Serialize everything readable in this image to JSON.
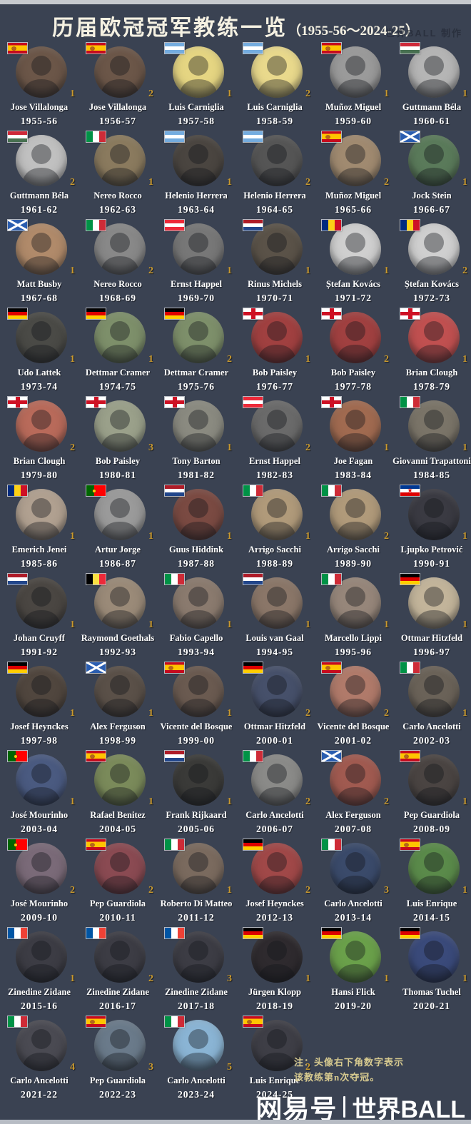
{
  "colors": {
    "background": "#3a4252",
    "count_gold": "#c9992e",
    "note_tan": "#d6c98f",
    "title_cream": "#f5f1e2",
    "text_white": "#ffffff"
  },
  "header": {
    "title_main": "历届欧冠冠军教练一览",
    "title_range": "（1955-56～2024-25）",
    "credit": "世界BALL  制作"
  },
  "note": {
    "line1": "注：头像右下角数字表示",
    "line2": "该教练第n次夺冠。"
  },
  "footer_logo": {
    "brand": "网易号",
    "divider": "|",
    "name": "世界BALL"
  },
  "flags": {
    "spain": {
      "dir": "h",
      "stripes": [
        [
          "#c60b1e",
          25
        ],
        [
          "#ffc400",
          50
        ],
        [
          "#c60b1e",
          25
        ]
      ],
      "overlay": "badge-left"
    },
    "argentina": {
      "dir": "h",
      "stripes": [
        [
          "#74acdf",
          33.3
        ],
        [
          "#ffffff",
          33.4
        ],
        [
          "#74acdf",
          33.3
        ]
      ]
    },
    "hungary": {
      "dir": "h",
      "stripes": [
        [
          "#ce2939",
          33.3
        ],
        [
          "#ffffff",
          33.4
        ],
        [
          "#477050",
          33.3
        ]
      ]
    },
    "italy": {
      "dir": "v",
      "stripes": [
        [
          "#009246",
          33.3
        ],
        [
          "#ffffff",
          33.4
        ],
        [
          "#ce2b37",
          33.3
        ]
      ]
    },
    "scotland": {
      "dir": "h",
      "stripes": [
        [
          "#2a5db0",
          100
        ]
      ],
      "overlay": "saltire"
    },
    "austria": {
      "dir": "h",
      "stripes": [
        [
          "#ed2939",
          33.3
        ],
        [
          "#ffffff",
          33.4
        ],
        [
          "#ed2939",
          33.3
        ]
      ]
    },
    "netherlands": {
      "dir": "h",
      "stripes": [
        [
          "#ae1c28",
          33.3
        ],
        [
          "#ffffff",
          33.4
        ],
        [
          "#21468b",
          33.3
        ]
      ]
    },
    "romania": {
      "dir": "v",
      "stripes": [
        [
          "#002b7f",
          33.3
        ],
        [
          "#fcd116",
          33.4
        ],
        [
          "#ce1126",
          33.3
        ]
      ]
    },
    "germany": {
      "dir": "h",
      "stripes": [
        [
          "#000000",
          33.3
        ],
        [
          "#dd0000",
          33.4
        ],
        [
          "#ffce00",
          33.3
        ]
      ]
    },
    "england": {
      "dir": "h",
      "stripes": [
        [
          "#ffffff",
          100
        ]
      ],
      "overlay": "england-cross"
    },
    "portugal": {
      "dir": "v",
      "stripes": [
        [
          "#006600",
          40
        ],
        [
          "#ff0000",
          60
        ]
      ],
      "overlay": "badge-40"
    },
    "yugoslavia": {
      "dir": "h",
      "stripes": [
        [
          "#003893",
          33.3
        ],
        [
          "#ffffff",
          33.4
        ],
        [
          "#de0000",
          33.3
        ]
      ],
      "overlay": "star"
    },
    "belgium": {
      "dir": "v",
      "stripes": [
        [
          "#000000",
          33.3
        ],
        [
          "#fae042",
          33.4
        ],
        [
          "#ed2939",
          33.3
        ]
      ]
    },
    "france": {
      "dir": "v",
      "stripes": [
        [
          "#0055a4",
          33.3
        ],
        [
          "#ffffff",
          33.4
        ],
        [
          "#ef4135",
          33.3
        ]
      ]
    }
  },
  "coaches": [
    {
      "name": "Jose Villalonga",
      "season": "1955-56",
      "flag": "spain",
      "count": "1",
      "photo": "#6b5648"
    },
    {
      "name": "Jose Villalonga",
      "season": "1956-57",
      "flag": "spain",
      "count": "2",
      "photo": "#6b5648"
    },
    {
      "name": "Luis Carniglia",
      "season": "1957-58",
      "flag": "argentina",
      "count": "1",
      "photo": "#e5d582"
    },
    {
      "name": "Luis Carniglia",
      "season": "1958-59",
      "flag": "argentina",
      "count": "2",
      "photo": "#e9d98c"
    },
    {
      "name": "Muñoz Miguel",
      "season": "1959-60",
      "flag": "spain",
      "count": "1",
      "photo": "#9a9a9a"
    },
    {
      "name": "Guttmann Béla",
      "season": "1960-61",
      "flag": "hungary",
      "count": "1",
      "photo": "#b5b5b5"
    },
    {
      "name": "Guttmann Béla",
      "season": "1961-62",
      "flag": "hungary",
      "count": "2",
      "photo": "#c0c0c0"
    },
    {
      "name": "Nereo Rocco",
      "season": "1962-63",
      "flag": "italy",
      "count": "1",
      "photo": "#8a7a5e"
    },
    {
      "name": "Helenio Herrera",
      "season": "1963-64",
      "flag": "argentina",
      "count": "1",
      "photo": "#4a4540"
    },
    {
      "name": "Helenio Herrera",
      "season": "1964-65",
      "flag": "argentina",
      "count": "2",
      "photo": "#555555"
    },
    {
      "name": "Muñoz Miguel",
      "season": "1965-66",
      "flag": "spain",
      "count": "2",
      "photo": "#a08a70"
    },
    {
      "name": "Jock Stein",
      "season": "1966-67",
      "flag": "scotland",
      "count": "1",
      "photo": "#5a7a5a"
    },
    {
      "name": "Matt Busby",
      "season": "1967-68",
      "flag": "scotland",
      "count": "1",
      "photo": "#b08a6a"
    },
    {
      "name": "Nereo Rocco",
      "season": "1968-69",
      "flag": "italy",
      "count": "2",
      "photo": "#888888"
    },
    {
      "name": "Ernst Happel",
      "season": "1969-70",
      "flag": "austria",
      "count": "1",
      "photo": "#777777"
    },
    {
      "name": "Rinus Michels",
      "season": "1970-71",
      "flag": "netherlands",
      "count": "1",
      "photo": "#5a5248"
    },
    {
      "name": "Ștefan Kovács",
      "season": "1971-72",
      "flag": "romania",
      "count": "1",
      "photo": "#cfcfcf"
    },
    {
      "name": "Ștefan Kovács",
      "season": "1972-73",
      "flag": "romania",
      "count": "2",
      "photo": "#cfcfcf"
    },
    {
      "name": "Udo Lattek",
      "season": "1973-74",
      "flag": "germany",
      "count": "1",
      "photo": "#4a4a46"
    },
    {
      "name": "Dettmar Cramer",
      "season": "1974-75",
      "flag": "germany",
      "count": "1",
      "photo": "#7d8f6a"
    },
    {
      "name": "Dettmar Cramer",
      "season": "1975-76",
      "flag": "germany",
      "count": "2",
      "photo": "#7d8f6a"
    },
    {
      "name": "Bob Paisley",
      "season": "1976-77",
      "flag": "england",
      "count": "1",
      "photo": "#a04040"
    },
    {
      "name": "Bob Paisley",
      "season": "1977-78",
      "flag": "england",
      "count": "2",
      "photo": "#a04040"
    },
    {
      "name": "Brian Clough",
      "season": "1978-79",
      "flag": "england",
      "count": "1",
      "photo": "#c05050"
    },
    {
      "name": "Brian Clough",
      "season": "1979-80",
      "flag": "england",
      "count": "2",
      "photo": "#b86a5a"
    },
    {
      "name": "Bob Paisley",
      "season": "1980-81",
      "flag": "england",
      "count": "3",
      "photo": "#9aa08a"
    },
    {
      "name": "Tony Barton",
      "season": "1981-82",
      "flag": "england",
      "count": "1",
      "photo": "#8a8a80"
    },
    {
      "name": "Ernst Happel",
      "season": "1982-83",
      "flag": "austria",
      "count": "2",
      "photo": "#6a6a6a"
    },
    {
      "name": "Joe Fagan",
      "season": "1983-84",
      "flag": "england",
      "count": "1",
      "photo": "#a06a50"
    },
    {
      "name": "Giovanni Trapattoni",
      "season": "1984-85",
      "flag": "italy",
      "count": "1",
      "photo": "#7a7468"
    },
    {
      "name": "Emerich Jenei",
      "season": "1985-86",
      "flag": "romania",
      "count": "1",
      "photo": "#b0a090"
    },
    {
      "name": "Artur Jorge",
      "season": "1986-87",
      "flag": "portugal",
      "count": "1",
      "photo": "#9a9a9a"
    },
    {
      "name": "Guus Hiddink",
      "season": "1987-88",
      "flag": "netherlands",
      "count": "1",
      "photo": "#7a4a42"
    },
    {
      "name": "Arrigo Sacchi",
      "season": "1988-89",
      "flag": "italy",
      "count": "1",
      "photo": "#b09a7a"
    },
    {
      "name": "Arrigo Sacchi",
      "season": "1989-90",
      "flag": "italy",
      "count": "2",
      "photo": "#b09a7a"
    },
    {
      "name": "Ljupko Petrović",
      "season": "1990-91",
      "flag": "yugoslavia",
      "count": "1",
      "photo": "#3a3a42"
    },
    {
      "name": "Johan Cruyff",
      "season": "1991-92",
      "flag": "netherlands",
      "count": "1",
      "photo": "#4a4642"
    },
    {
      "name": "Raymond Goethals",
      "season": "1992-93",
      "flag": "belgium",
      "count": "1",
      "photo": "#9a8a78"
    },
    {
      "name": "Fabio Capello",
      "season": "1993-94",
      "flag": "italy",
      "count": "1",
      "photo": "#8a7a6e"
    },
    {
      "name": "Louis van Gaal",
      "season": "1994-95",
      "flag": "netherlands",
      "count": "1",
      "photo": "#8a7668"
    },
    {
      "name": "Marcello Lippi",
      "season": "1995-96",
      "flag": "italy",
      "count": "1",
      "photo": "#96867a"
    },
    {
      "name": "Ottmar Hitzfeld",
      "season": "1996-97",
      "flag": "germany",
      "count": "1",
      "photo": "#c2b49a"
    },
    {
      "name": "Josef Heynckes",
      "season": "1997-98",
      "flag": "germany",
      "count": "1",
      "photo": "#50463e"
    },
    {
      "name": "Alex Ferguson",
      "season": "1998-99",
      "flag": "scotland",
      "count": "1",
      "photo": "#5a5048"
    },
    {
      "name": "Vicente del Bosque",
      "season": "1999-00",
      "flag": "spain",
      "count": "1",
      "photo": "#6a5a50"
    },
    {
      "name": "Ottmar Hitzfeld",
      "season": "2000-01",
      "flag": "germany",
      "count": "2",
      "photo": "#46506a"
    },
    {
      "name": "Vicente del Bosque",
      "season": "2001-02",
      "flag": "spain",
      "count": "2",
      "photo": "#b07a6a"
    },
    {
      "name": "Carlo Ancelotti",
      "season": "2002-03",
      "flag": "italy",
      "count": "1",
      "photo": "#6a6258"
    },
    {
      "name": "José Mourinho",
      "season": "2003-04",
      "flag": "portugal",
      "count": "1",
      "photo": "#4a5a80"
    },
    {
      "name": "Rafael Benitez",
      "season": "2004-05",
      "flag": "spain",
      "count": "1",
      "photo": "#7a8a5a"
    },
    {
      "name": "Frank Rijkaard",
      "season": "2005-06",
      "flag": "netherlands",
      "count": "1",
      "photo": "#3a3a38"
    },
    {
      "name": "Carlo Ancelotti",
      "season": "2006-07",
      "flag": "italy",
      "count": "2",
      "photo": "#8a8a88"
    },
    {
      "name": "Alex Ferguson",
      "season": "2007-08",
      "flag": "scotland",
      "count": "2",
      "photo": "#a05a50"
    },
    {
      "name": "Pep Guardiola",
      "season": "2008-09",
      "flag": "spain",
      "count": "1",
      "photo": "#4a4442"
    },
    {
      "name": "José Mourinho",
      "season": "2009-10",
      "flag": "portugal",
      "count": "2",
      "photo": "#7a6a78"
    },
    {
      "name": "Pep Guardiola",
      "season": "2010-11",
      "flag": "spain",
      "count": "2",
      "photo": "#8a4a52"
    },
    {
      "name": "Roberto Di Matteo",
      "season": "2011-12",
      "flag": "italy",
      "count": "1",
      "photo": "#7a6a5e"
    },
    {
      "name": "Josef Heynckes",
      "season": "2012-13",
      "flag": "germany",
      "count": "2",
      "photo": "#a04848"
    },
    {
      "name": "Carlo Ancelotti",
      "season": "2013-14",
      "flag": "italy",
      "count": "3",
      "photo": "#3a4a6a"
    },
    {
      "name": "Luis Enrique",
      "season": "2014-15",
      "flag": "spain",
      "count": "1",
      "photo": "#5a8a4a"
    },
    {
      "name": "Zinedine Zidane",
      "season": "2015-16",
      "flag": "france",
      "count": "1",
      "photo": "#3c3c44"
    },
    {
      "name": "Zinedine Zidane",
      "season": "2016-17",
      "flag": "france",
      "count": "2",
      "photo": "#3c3c44"
    },
    {
      "name": "Zinedine Zidane",
      "season": "2017-18",
      "flag": "france",
      "count": "3",
      "photo": "#3c3c44"
    },
    {
      "name": "Jürgen Klopp",
      "season": "2018-19",
      "flag": "germany",
      "count": "1",
      "photo": "#2e2a2e"
    },
    {
      "name": "Hansi Flick",
      "season": "2019-20",
      "flag": "germany",
      "count": "1",
      "photo": "#6aa04a"
    },
    {
      "name": "Thomas Tuchel",
      "season": "2020-21",
      "flag": "germany",
      "count": "1",
      "photo": "#3a4a7a"
    },
    {
      "name": "Carlo Ancelotti",
      "season": "2021-22",
      "flag": "italy",
      "count": "4",
      "photo": "#4a4a52"
    },
    {
      "name": "Pep Guardiola",
      "season": "2022-23",
      "flag": "spain",
      "count": "3",
      "photo": "#6a7a8a"
    },
    {
      "name": "Carlo Ancelotti",
      "season": "2023-24",
      "flag": "italy",
      "count": "5",
      "photo": "#8ab4d4"
    },
    {
      "name": "Luis Enrique",
      "season": "2024-25",
      "flag": "spain",
      "count": "2",
      "photo": "#3e3e46"
    }
  ]
}
